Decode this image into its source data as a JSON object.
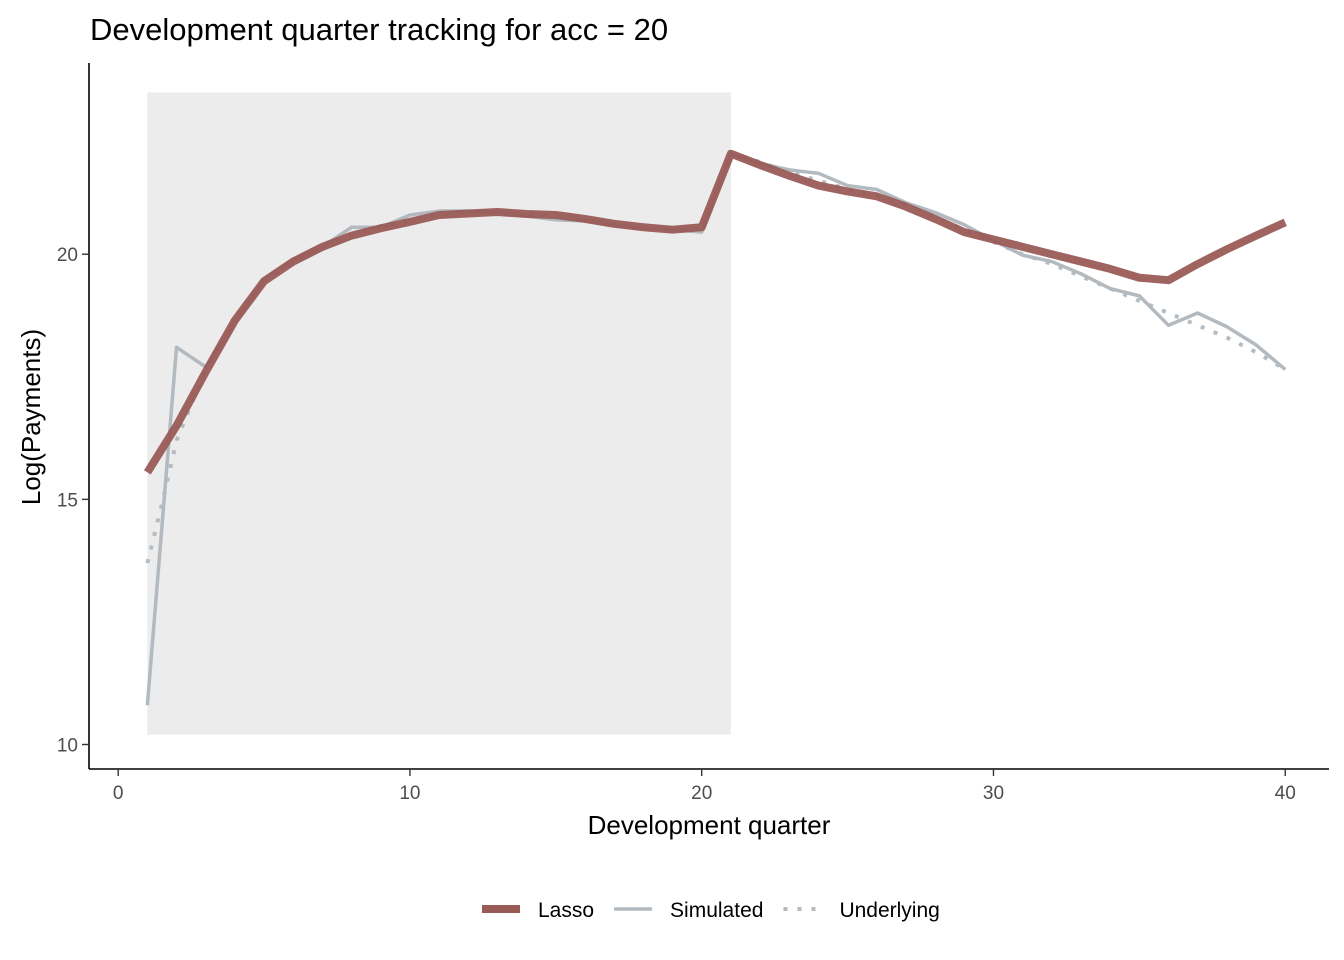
{
  "chart_data": {
    "type": "line",
    "title": "Development quarter tracking for acc = 20",
    "xlabel": "Development quarter",
    "ylabel": "Log(Payments)",
    "xlim": [
      -1,
      41.5
    ],
    "ylim": [
      9.5,
      23.9
    ],
    "x_ticks": [
      0,
      10,
      20,
      30,
      40
    ],
    "y_ticks": [
      10,
      15,
      20
    ],
    "shaded_region": {
      "x": [
        1,
        21
      ],
      "y": [
        10.2,
        23.3
      ],
      "color": "#ececec"
    },
    "legend_position": "bottom",
    "grid": false,
    "series": [
      {
        "name": "Lasso",
        "style": "solid-thick",
        "color": "#9a5b57",
        "x": [
          1,
          2,
          3,
          4,
          5,
          6,
          7,
          8,
          9,
          10,
          11,
          12,
          13,
          14,
          15,
          16,
          17,
          18,
          19,
          20,
          21,
          22,
          23,
          24,
          25,
          26,
          27,
          28,
          29,
          30,
          31,
          32,
          33,
          34,
          35,
          36,
          37,
          38,
          39,
          40
        ],
        "values": [
          15.55,
          16.5,
          17.6,
          18.65,
          19.45,
          19.85,
          20.15,
          20.38,
          20.53,
          20.66,
          20.8,
          20.83,
          20.86,
          20.82,
          20.8,
          20.72,
          20.62,
          20.55,
          20.5,
          20.55,
          22.05,
          21.82,
          21.6,
          21.4,
          21.28,
          21.18,
          20.97,
          20.72,
          20.45,
          20.3,
          20.15,
          20.0,
          19.85,
          19.7,
          19.52,
          19.47,
          19.8,
          20.1,
          20.38,
          20.65
        ]
      },
      {
        "name": "Simulated",
        "style": "solid",
        "color": "#b2b9bf",
        "x": [
          1,
          2,
          3,
          4,
          5,
          6,
          7,
          8,
          9,
          10,
          11,
          12,
          13,
          14,
          15,
          16,
          17,
          18,
          19,
          20,
          21,
          22,
          23,
          24,
          25,
          26,
          27,
          28,
          29,
          30,
          31,
          32,
          33,
          34,
          35,
          36,
          37,
          38,
          39,
          40
        ],
        "values": [
          10.8,
          18.1,
          17.7,
          18.6,
          19.5,
          19.9,
          20.15,
          20.55,
          20.55,
          20.8,
          20.88,
          20.88,
          20.85,
          20.78,
          20.7,
          20.68,
          20.58,
          20.53,
          20.5,
          20.45,
          22.05,
          21.85,
          21.72,
          21.65,
          21.4,
          21.32,
          21.05,
          20.85,
          20.6,
          20.28,
          19.98,
          19.85,
          19.6,
          19.3,
          19.15,
          18.55,
          18.8,
          18.52,
          18.15,
          17.65
        ]
      },
      {
        "name": "Underlying",
        "style": "dotted",
        "color": "#b2b9bf",
        "x": [
          1,
          1.5,
          2,
          3,
          4,
          5,
          6,
          7,
          8,
          9,
          10,
          11,
          12,
          13,
          14,
          15,
          16,
          17,
          18,
          19,
          20,
          21,
          22,
          23,
          24,
          25,
          26,
          27,
          28,
          29,
          30,
          31,
          32,
          33,
          34,
          35,
          36,
          37,
          38,
          39,
          40
        ],
        "values": [
          13.7,
          14.9,
          16.2,
          17.65,
          18.65,
          19.45,
          19.85,
          20.15,
          20.4,
          20.55,
          20.7,
          20.82,
          20.86,
          20.88,
          20.84,
          20.8,
          20.72,
          20.62,
          20.55,
          20.5,
          20.52,
          22.05,
          21.88,
          21.68,
          21.5,
          21.33,
          21.2,
          21.0,
          20.75,
          20.5,
          20.25,
          20.0,
          19.8,
          19.55,
          19.3,
          19.05,
          18.8,
          18.55,
          18.3,
          18.0,
          17.65
        ]
      }
    ]
  }
}
